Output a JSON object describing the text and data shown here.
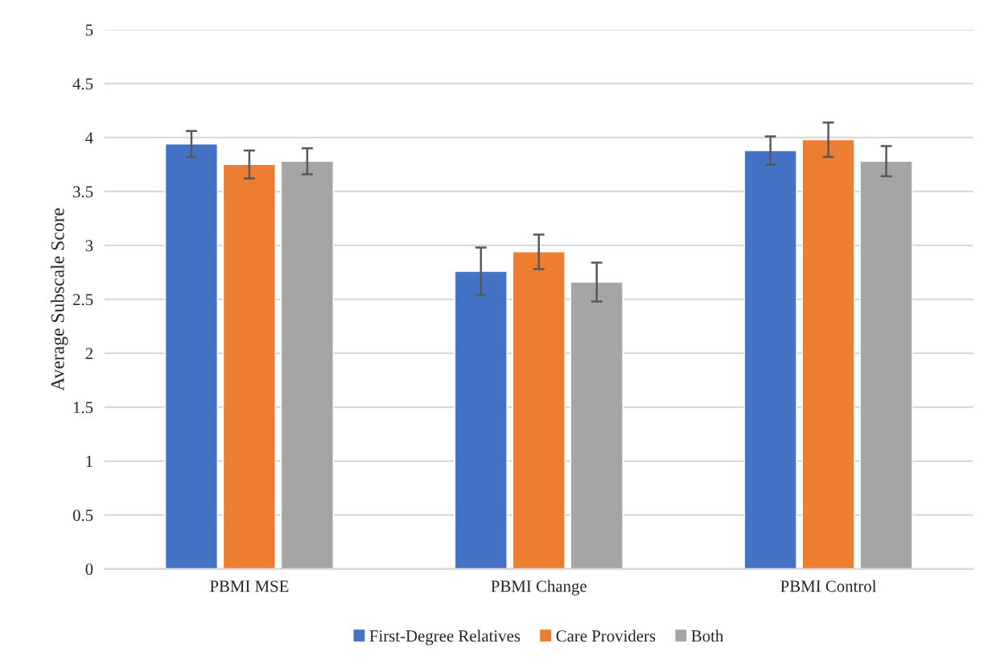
{
  "chart_data": {
    "type": "bar",
    "ylabel": "Average Subscale Score",
    "categories": [
      "PBMI MSE",
      "PBMI Change",
      "PBMI Control"
    ],
    "series": [
      {
        "name": "First-Degree Relatives",
        "color": "#4472c4",
        "values": [
          3.94,
          2.76,
          3.88
        ],
        "errors": [
          0.12,
          0.22,
          0.13
        ]
      },
      {
        "name": "Care Providers",
        "color": "#ed7d31",
        "values": [
          3.75,
          2.94,
          3.98
        ],
        "errors": [
          0.13,
          0.16,
          0.16
        ]
      },
      {
        "name": "Both",
        "color": "#a5a5a5",
        "values": [
          3.78,
          2.66,
          3.78
        ],
        "errors": [
          0.12,
          0.18,
          0.14
        ]
      }
    ],
    "ylim": [
      0,
      5
    ],
    "yticks": [
      0,
      0.5,
      1,
      1.5,
      2,
      2.5,
      3,
      3.5,
      4,
      4.5,
      5
    ],
    "grid": "y",
    "legend": "bottom"
  }
}
